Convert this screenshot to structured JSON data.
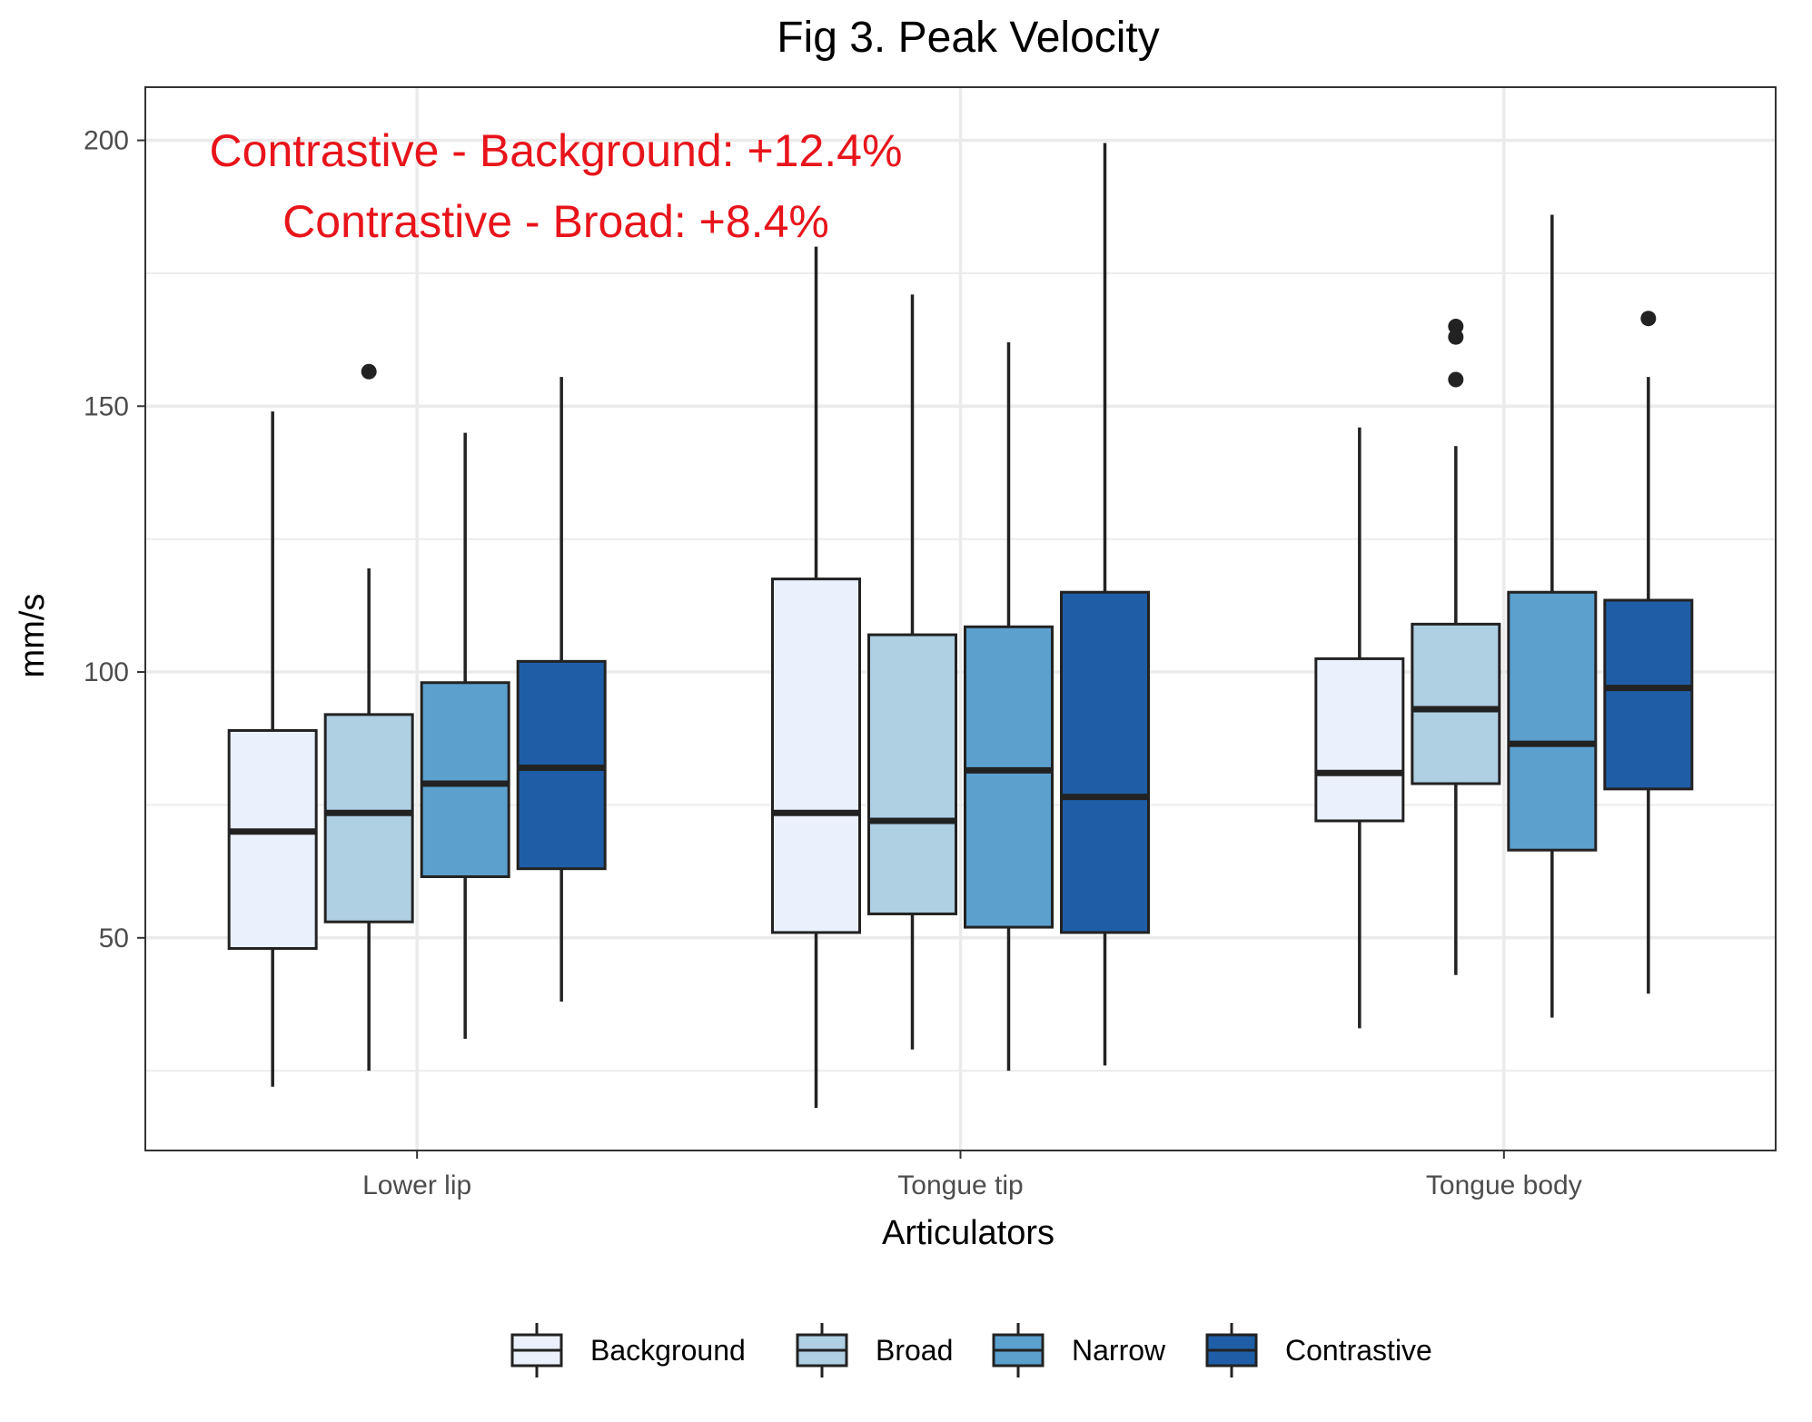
{
  "chart_data": {
    "type": "boxplot",
    "title": "Fig 3. Peak Velocity",
    "xlabel": "Articulators",
    "ylabel": "mm/s",
    "ylim": [
      10,
      210
    ],
    "yticks": [
      50,
      100,
      150,
      200
    ],
    "grid": true,
    "legend_position": "bottom",
    "categories": [
      "Lower lip",
      "Tongue tip",
      "Tongue body"
    ],
    "series": [
      {
        "name": "Background",
        "color": "#eaf0fc",
        "boxes": [
          {
            "whisker_low": 22,
            "q1": 48,
            "median": 70,
            "q3": 89,
            "whisker_high": 149,
            "outliers": []
          },
          {
            "whisker_low": 18,
            "q1": 51,
            "median": 73.5,
            "q3": 117.5,
            "whisker_high": 180,
            "outliers": []
          },
          {
            "whisker_low": 33,
            "q1": 72,
            "median": 81,
            "q3": 102.5,
            "whisker_high": 146,
            "outliers": []
          }
        ]
      },
      {
        "name": "Broad",
        "color": "#afcfe3",
        "boxes": [
          {
            "whisker_low": 25,
            "q1": 53,
            "median": 73.5,
            "q3": 92,
            "whisker_high": 119.5,
            "outliers": [
              156.5
            ]
          },
          {
            "whisker_low": 29,
            "q1": 54.5,
            "median": 72,
            "q3": 107,
            "whisker_high": 171,
            "outliers": []
          },
          {
            "whisker_low": 43,
            "q1": 79,
            "median": 93,
            "q3": 109,
            "whisker_high": 142.5,
            "outliers": [
              155,
              163,
              165
            ]
          }
        ]
      },
      {
        "name": "Narrow",
        "color": "#5ca0ce",
        "boxes": [
          {
            "whisker_low": 31,
            "q1": 61.5,
            "median": 79,
            "q3": 98,
            "whisker_high": 145,
            "outliers": []
          },
          {
            "whisker_low": 25,
            "q1": 52,
            "median": 81.5,
            "q3": 108.5,
            "whisker_high": 162,
            "outliers": []
          },
          {
            "whisker_low": 35,
            "q1": 66.5,
            "median": 86.5,
            "q3": 115,
            "whisker_high": 186,
            "outliers": []
          }
        ]
      },
      {
        "name": "Contrastive",
        "color": "#1f5ea7",
        "boxes": [
          {
            "whisker_low": 38,
            "q1": 63,
            "median": 82,
            "q3": 102,
            "whisker_high": 155.5,
            "outliers": []
          },
          {
            "whisker_low": 26,
            "q1": 51,
            "median": 76.5,
            "q3": 115,
            "whisker_high": 199.5,
            "outliers": []
          },
          {
            "whisker_low": 39.5,
            "q1": 78,
            "median": 97,
            "q3": 113.5,
            "whisker_high": 155.5,
            "outliers": [
              166.5
            ]
          }
        ]
      }
    ],
    "annotations": [
      {
        "text": "Contrastive - Background: +12.4%",
        "color": "#e8141b"
      },
      {
        "text": "Contrastive - Broad: +8.4%",
        "color": "#e8141b"
      }
    ]
  }
}
